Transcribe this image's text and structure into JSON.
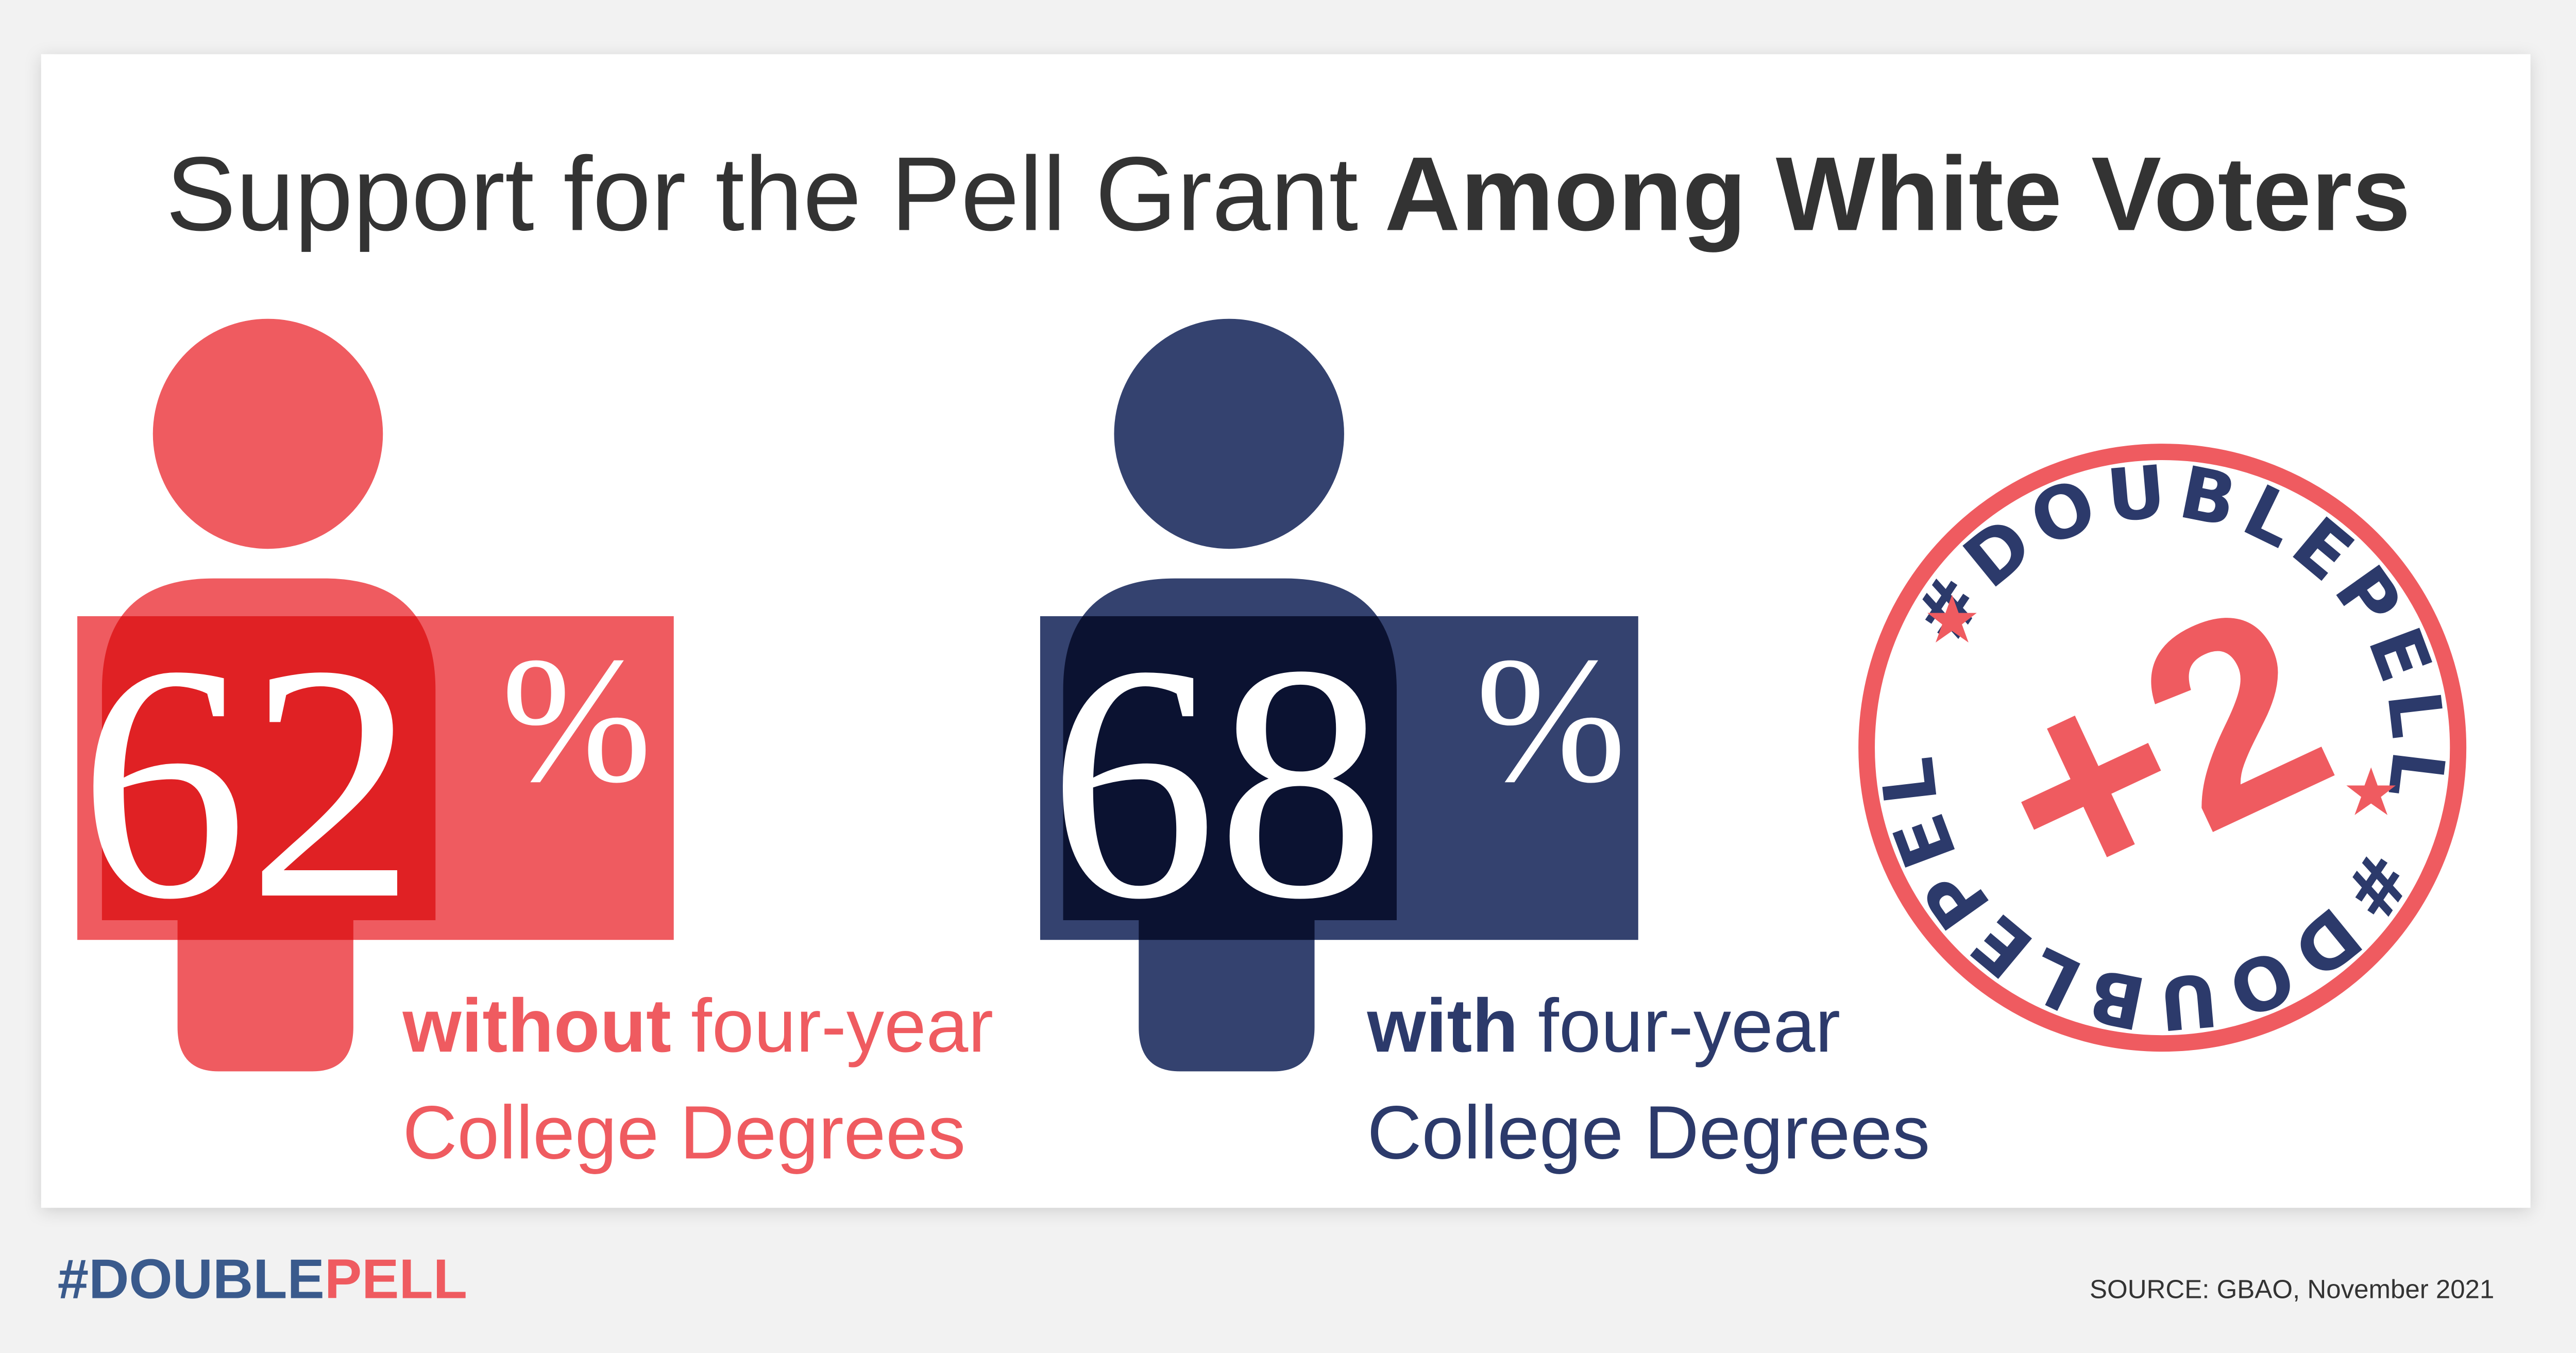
{
  "title": {
    "light": "Support for the Pell Grant",
    "bold": "Among White Voters"
  },
  "stats": [
    {
      "value": 62,
      "unit": "%",
      "caption": {
        "bold": "without",
        "light": "four-year",
        "line2": "College Degrees"
      }
    },
    {
      "value": 68,
      "unit": "%",
      "caption": {
        "bold": "with",
        "light": "four-year",
        "line2": "College Degrees"
      }
    }
  ],
  "badge": {
    "hashtag_top": "#DOUBLEPELL",
    "hashtag_bottom": "#DOUBLEPELL",
    "center": "+2"
  },
  "footer": {
    "hashtag_left": "#DOUBLE",
    "hashtag_right": "PELL",
    "source": "SOURCE: GBAO, November 2021"
  }
}
